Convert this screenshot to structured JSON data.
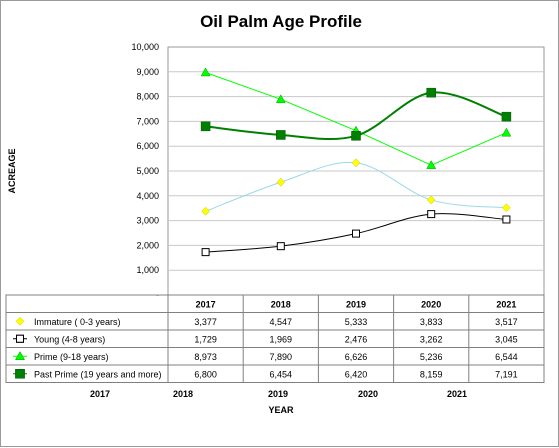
{
  "chart_data": {
    "type": "line",
    "title": "Oil Palm Age Profile",
    "xlabel": "YEAR",
    "ylabel": "ACREAGE",
    "ylim": [
      0,
      10000
    ],
    "yticks": [
      "-",
      "1,000",
      "2,000",
      "3,000",
      "4,000",
      "5,000",
      "6,000",
      "7,000",
      "8,000",
      "9,000",
      "10,000"
    ],
    "categories": [
      "2017",
      "2018",
      "2019",
      "2020",
      "2021"
    ],
    "bottom_axis_labels": [
      "2017",
      "2018",
      "2019",
      "2020",
      "2021"
    ],
    "grid": true,
    "legend": "data-table",
    "series": [
      {
        "name": "Immature ( 0-3 years)",
        "color": "#ffff00",
        "marker": "diamond",
        "smooth": true,
        "values": [
          3377,
          4547,
          5333,
          3833,
          3517
        ],
        "labels": [
          "3,377",
          "4,547",
          "5,333",
          "3,833",
          "3,517"
        ]
      },
      {
        "name": "Young (4-8 years)",
        "color": "#000000",
        "marker": "square-open",
        "smooth": true,
        "values": [
          1729,
          1969,
          2476,
          3262,
          3045
        ],
        "labels": [
          "1,729",
          "1,969",
          "2,476",
          "3,262",
          "3,045"
        ]
      },
      {
        "name": "Prime (9-18 years)",
        "color": "#00ff00",
        "marker": "triangle",
        "smooth": false,
        "values": [
          8973,
          7890,
          6626,
          5236,
          6544
        ],
        "labels": [
          "8,973",
          "7,890",
          "6,626",
          "5,236",
          "6,544"
        ]
      },
      {
        "name": "Past Prime (19 years and more)",
        "color": "#008000",
        "marker": "square",
        "smooth": true,
        "values": [
          6800,
          6454,
          6420,
          8159,
          7191
        ],
        "labels": [
          "6,800",
          "6,454",
          "6,420",
          "8,159",
          "7,191"
        ]
      }
    ]
  }
}
